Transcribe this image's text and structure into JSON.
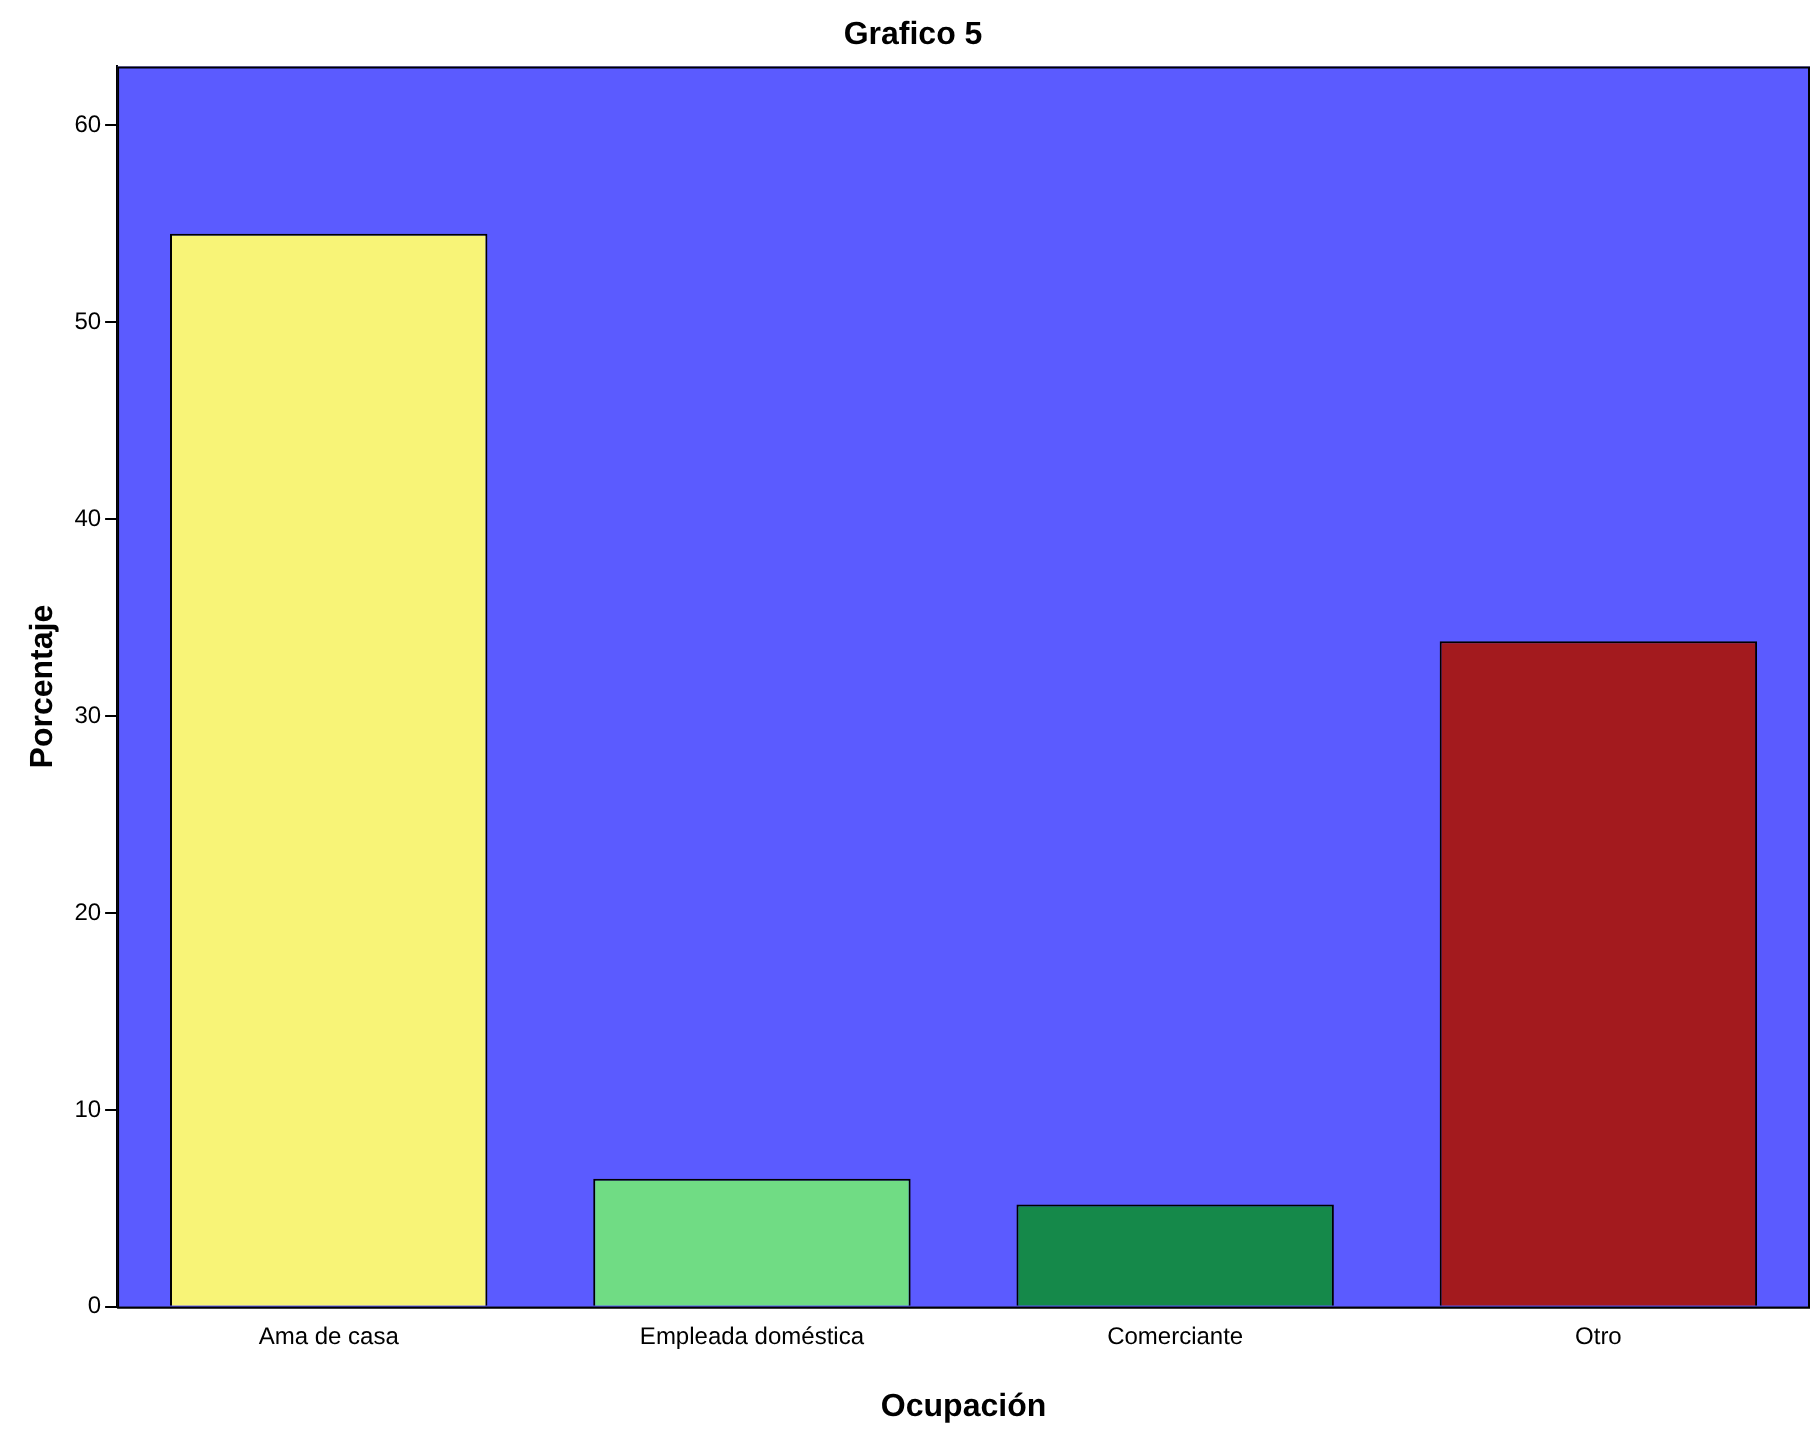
{
  "chart_data": {
    "type": "bar",
    "title": "Grafico 5",
    "xlabel": "Ocupación",
    "ylabel": "Porcentaje",
    "categories": [
      "Ama de casa",
      "Empleada doméstica",
      "Comerciante",
      "Otro"
    ],
    "values": [
      54.5,
      6.5,
      5.2,
      33.8
    ],
    "colors": [
      "#f8f477",
      "#70dc84",
      "#15894a",
      "#a31a1e"
    ],
    "ylim": [
      0,
      63
    ],
    "yticks": [
      0,
      10,
      20,
      30,
      40,
      50,
      60
    ]
  }
}
